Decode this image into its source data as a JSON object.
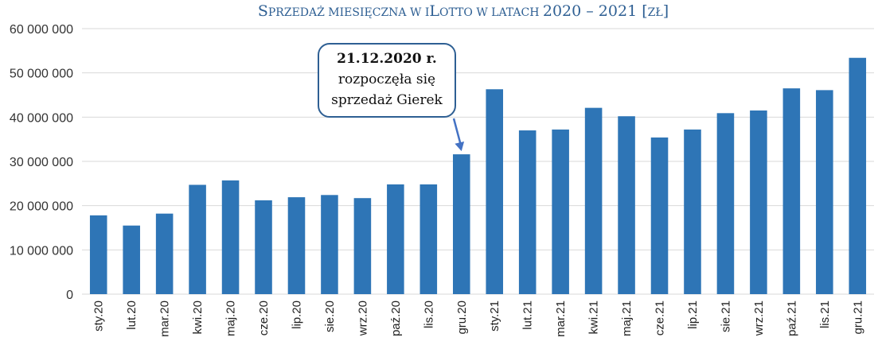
{
  "chart_data": {
    "type": "bar",
    "title_parts": [
      {
        "text": "S",
        "small": false
      },
      {
        "text": "PRZEDAŻ MIESIĘCZNA W I",
        "small": true
      },
      {
        "text": "L",
        "small": false
      },
      {
        "text": "OTTO W LATACH ",
        "small": true
      },
      {
        "text": "2020 – 2021 [",
        "small": false
      },
      {
        "text": "ZŁ",
        "small": true
      },
      {
        "text": "]",
        "small": false
      }
    ],
    "categories": [
      "sty.20",
      "lut.20",
      "mar.20",
      "kwi.20",
      "maj.20",
      "cze.20",
      "lip.20",
      "sie.20",
      "wrz.20",
      "paź.20",
      "lis.20",
      "gru.20",
      "sty.21",
      "lut.21",
      "mar.21",
      "kwi.21",
      "maj.21",
      "cze.21",
      "lip.21",
      "sie.21",
      "wrz.21",
      "paź.21",
      "lis.21",
      "gru.21"
    ],
    "values": [
      17800000,
      15500000,
      18200000,
      24700000,
      25700000,
      21200000,
      21900000,
      22400000,
      21700000,
      24800000,
      24800000,
      31600000,
      46300000,
      37000000,
      37200000,
      42100000,
      40200000,
      35400000,
      37200000,
      40900000,
      41500000,
      46500000,
      46100000,
      53400000
    ],
    "ylim": [
      0,
      60000000
    ],
    "yticks": [
      0,
      10000000,
      20000000,
      30000000,
      40000000,
      50000000,
      60000000
    ],
    "ytick_labels": [
      "0",
      "10 000 000",
      "20 000 000",
      "30 000 000",
      "40 000 000",
      "50 000 000",
      "60 000 000"
    ],
    "grid": true,
    "bar_color": "#2e75b6",
    "annotation": {
      "lines": [
        "21.12.2020 r.",
        "rozpoczęła się",
        "sprzedaż Gierek"
      ],
      "target_category": "gru.20",
      "border_color": "#2e5f93",
      "arrow_color": "#4472c4"
    }
  }
}
